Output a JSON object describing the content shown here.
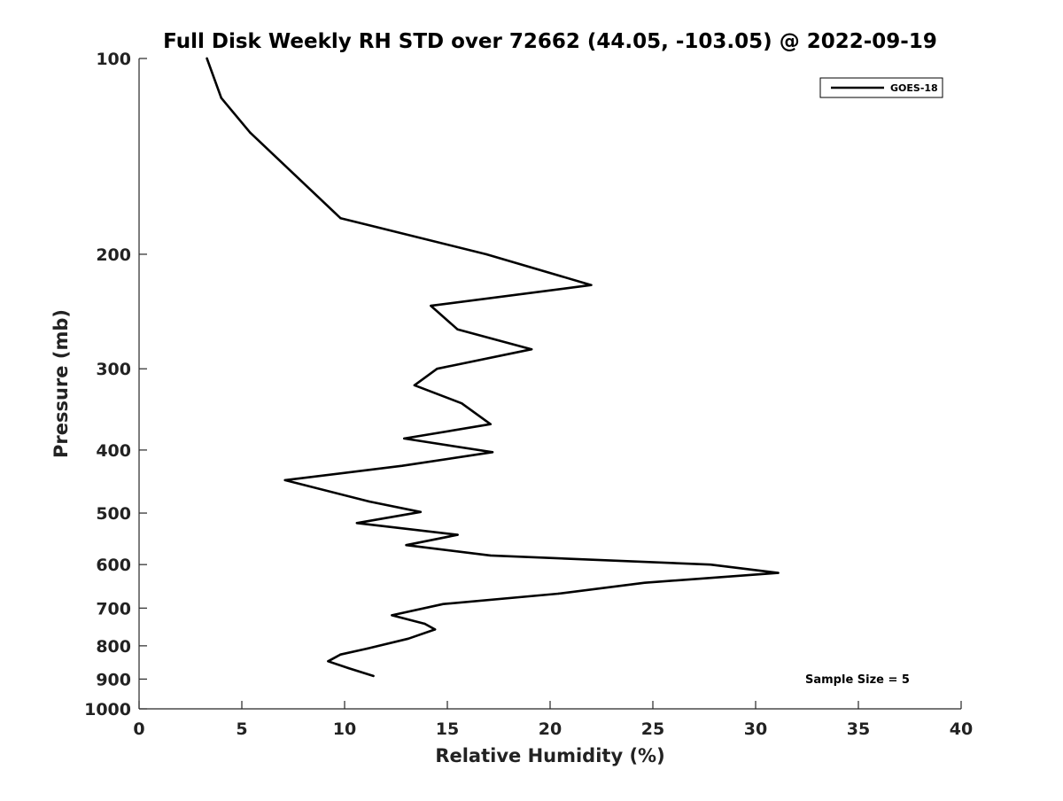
{
  "chart_data": {
    "type": "line",
    "title": "Full Disk Weekly RH STD over 72662 (44.05, -103.05) @ 2022-09-19",
    "xlabel": "Relative Humidity (%)",
    "ylabel": "Pressure (mb)",
    "xlim": [
      0,
      40
    ],
    "ylim": [
      100,
      1000
    ],
    "y_scale": "log",
    "y_reversed": true,
    "grid": false,
    "legend_position": "top-right",
    "x_ticks": [
      0,
      5,
      10,
      15,
      20,
      25,
      30,
      35,
      40
    ],
    "x_tick_labels": [
      "0",
      "5",
      "10",
      "15",
      "20",
      "25",
      "30",
      "35",
      "40"
    ],
    "y_ticks": [
      100,
      200,
      300,
      400,
      500,
      600,
      700,
      800,
      900,
      1000
    ],
    "y_tick_labels": [
      "100",
      "200",
      "300",
      "400",
      "500",
      "600",
      "700",
      "800",
      "900",
      "1000"
    ],
    "series": [
      {
        "name": "GOES-18",
        "color": "#000000",
        "x": [
          3.3,
          4.0,
          5.4,
          9.8,
          16.9,
          22.0,
          14.2,
          15.5,
          19.1,
          14.5,
          13.4,
          15.7,
          17.1,
          12.9,
          17.2,
          12.8,
          7.1,
          11.2,
          13.7,
          10.6,
          15.5,
          13.0,
          17.1,
          27.8,
          31.1,
          24.6,
          20.4,
          14.8,
          12.3,
          13.9,
          14.4,
          13.1,
          11.1,
          9.8,
          9.2,
          10.2,
          11.4
        ],
        "y": [
          100,
          115,
          130,
          176,
          200,
          223,
          240,
          261,
          280,
          300,
          318,
          339,
          365,
          384,
          403,
          423,
          445,
          480,
          498,
          518,
          540,
          560,
          581,
          600,
          618,
          640,
          665,
          690,
          718,
          740,
          755,
          780,
          808,
          825,
          845,
          866,
          890
        ]
      }
    ],
    "annotations": [
      "Sample Size = 5"
    ]
  }
}
